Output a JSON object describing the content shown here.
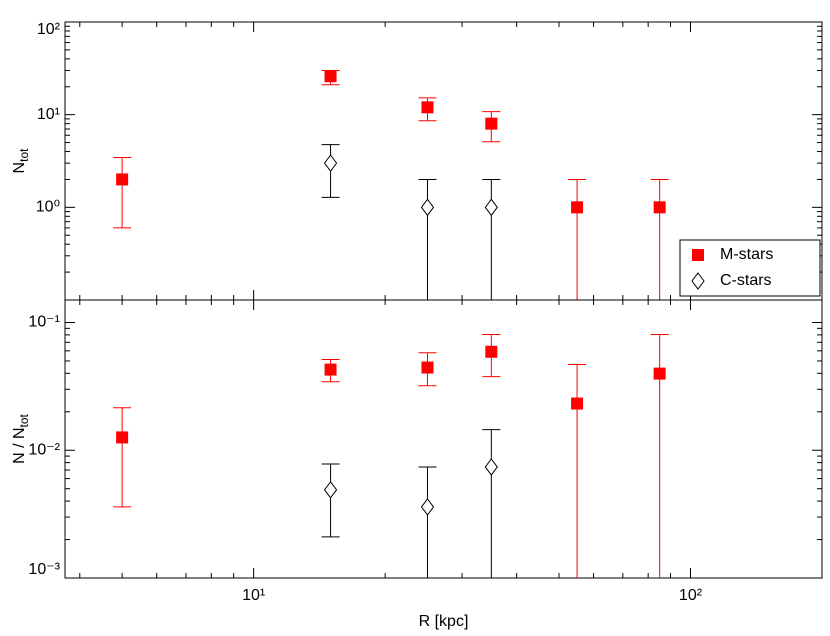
{
  "chart_data": [
    {
      "type": "scatter",
      "ylabel": "N",
      "ylabel_sub": "tot",
      "xlog": true,
      "ylog": true,
      "xlim": [
        3.7,
        200
      ],
      "xticks": [
        10,
        100
      ],
      "ylim": [
        0.1,
        100
      ],
      "yticks": [
        {
          "value": 1,
          "label": "10⁰"
        },
        {
          "value": 10,
          "label": "10¹"
        },
        {
          "value": 100,
          "label": "10²"
        }
      ],
      "legend": "lower right",
      "series": [
        {
          "name": "M-stars",
          "color": "#ff0000",
          "marker": "square",
          "x": [
            5,
            15,
            25,
            35,
            55,
            85
          ],
          "values": [
            2,
            26,
            12,
            8,
            1,
            1
          ],
          "err_low": [
            0.6,
            21,
            8.6,
            5.1,
            0,
            0
          ],
          "err_high": [
            3.45,
            30,
            15.2,
            10.8,
            2,
            2
          ]
        },
        {
          "name": "C-stars",
          "color": "#000000",
          "marker": "diamond",
          "x": [
            15,
            25,
            35
          ],
          "values": [
            3,
            1,
            1
          ],
          "err_low": [
            1.28,
            0,
            0
          ],
          "err_high": [
            4.75,
            2,
            2
          ]
        }
      ]
    },
    {
      "type": "scatter",
      "xlabel": "R [kpc]",
      "ylabel": "N / N",
      "ylabel_sub": "tot",
      "xlog": true,
      "ylog": true,
      "xlim": [
        3.7,
        200
      ],
      "xticks": [
        {
          "value": 10,
          "label": "10¹"
        },
        {
          "value": 100,
          "label": "10²"
        }
      ],
      "ylim": [
        0.001,
        0.15
      ],
      "yticks": [
        {
          "value": 0.001,
          "label": "10⁻³"
        },
        {
          "value": 0.01,
          "label": "10⁻²"
        },
        {
          "value": 0.1,
          "label": "10⁻¹"
        }
      ],
      "series": [
        {
          "color": "#ff0000",
          "marker": "square",
          "x": [
            5,
            15,
            25,
            35,
            55,
            85
          ],
          "values": [
            0.0126,
            0.0428,
            0.0444,
            0.059,
            0.0232,
            0.0398
          ],
          "err_low": [
            0.0036,
            0.0344,
            0.032,
            0.0377,
            0,
            0
          ],
          "err_high": [
            0.0215,
            0.0513,
            0.058,
            0.0805,
            0.0469,
            0.0805
          ]
        },
        {
          "color": "#000000",
          "marker": "diamond",
          "x": [
            15,
            25,
            35
          ],
          "values": [
            0.0049,
            0.0036,
            0.0074
          ],
          "err_low": [
            0.0021,
            0,
            0
          ],
          "err_high": [
            0.0078,
            0.0074,
            0.0145
          ]
        }
      ]
    }
  ]
}
